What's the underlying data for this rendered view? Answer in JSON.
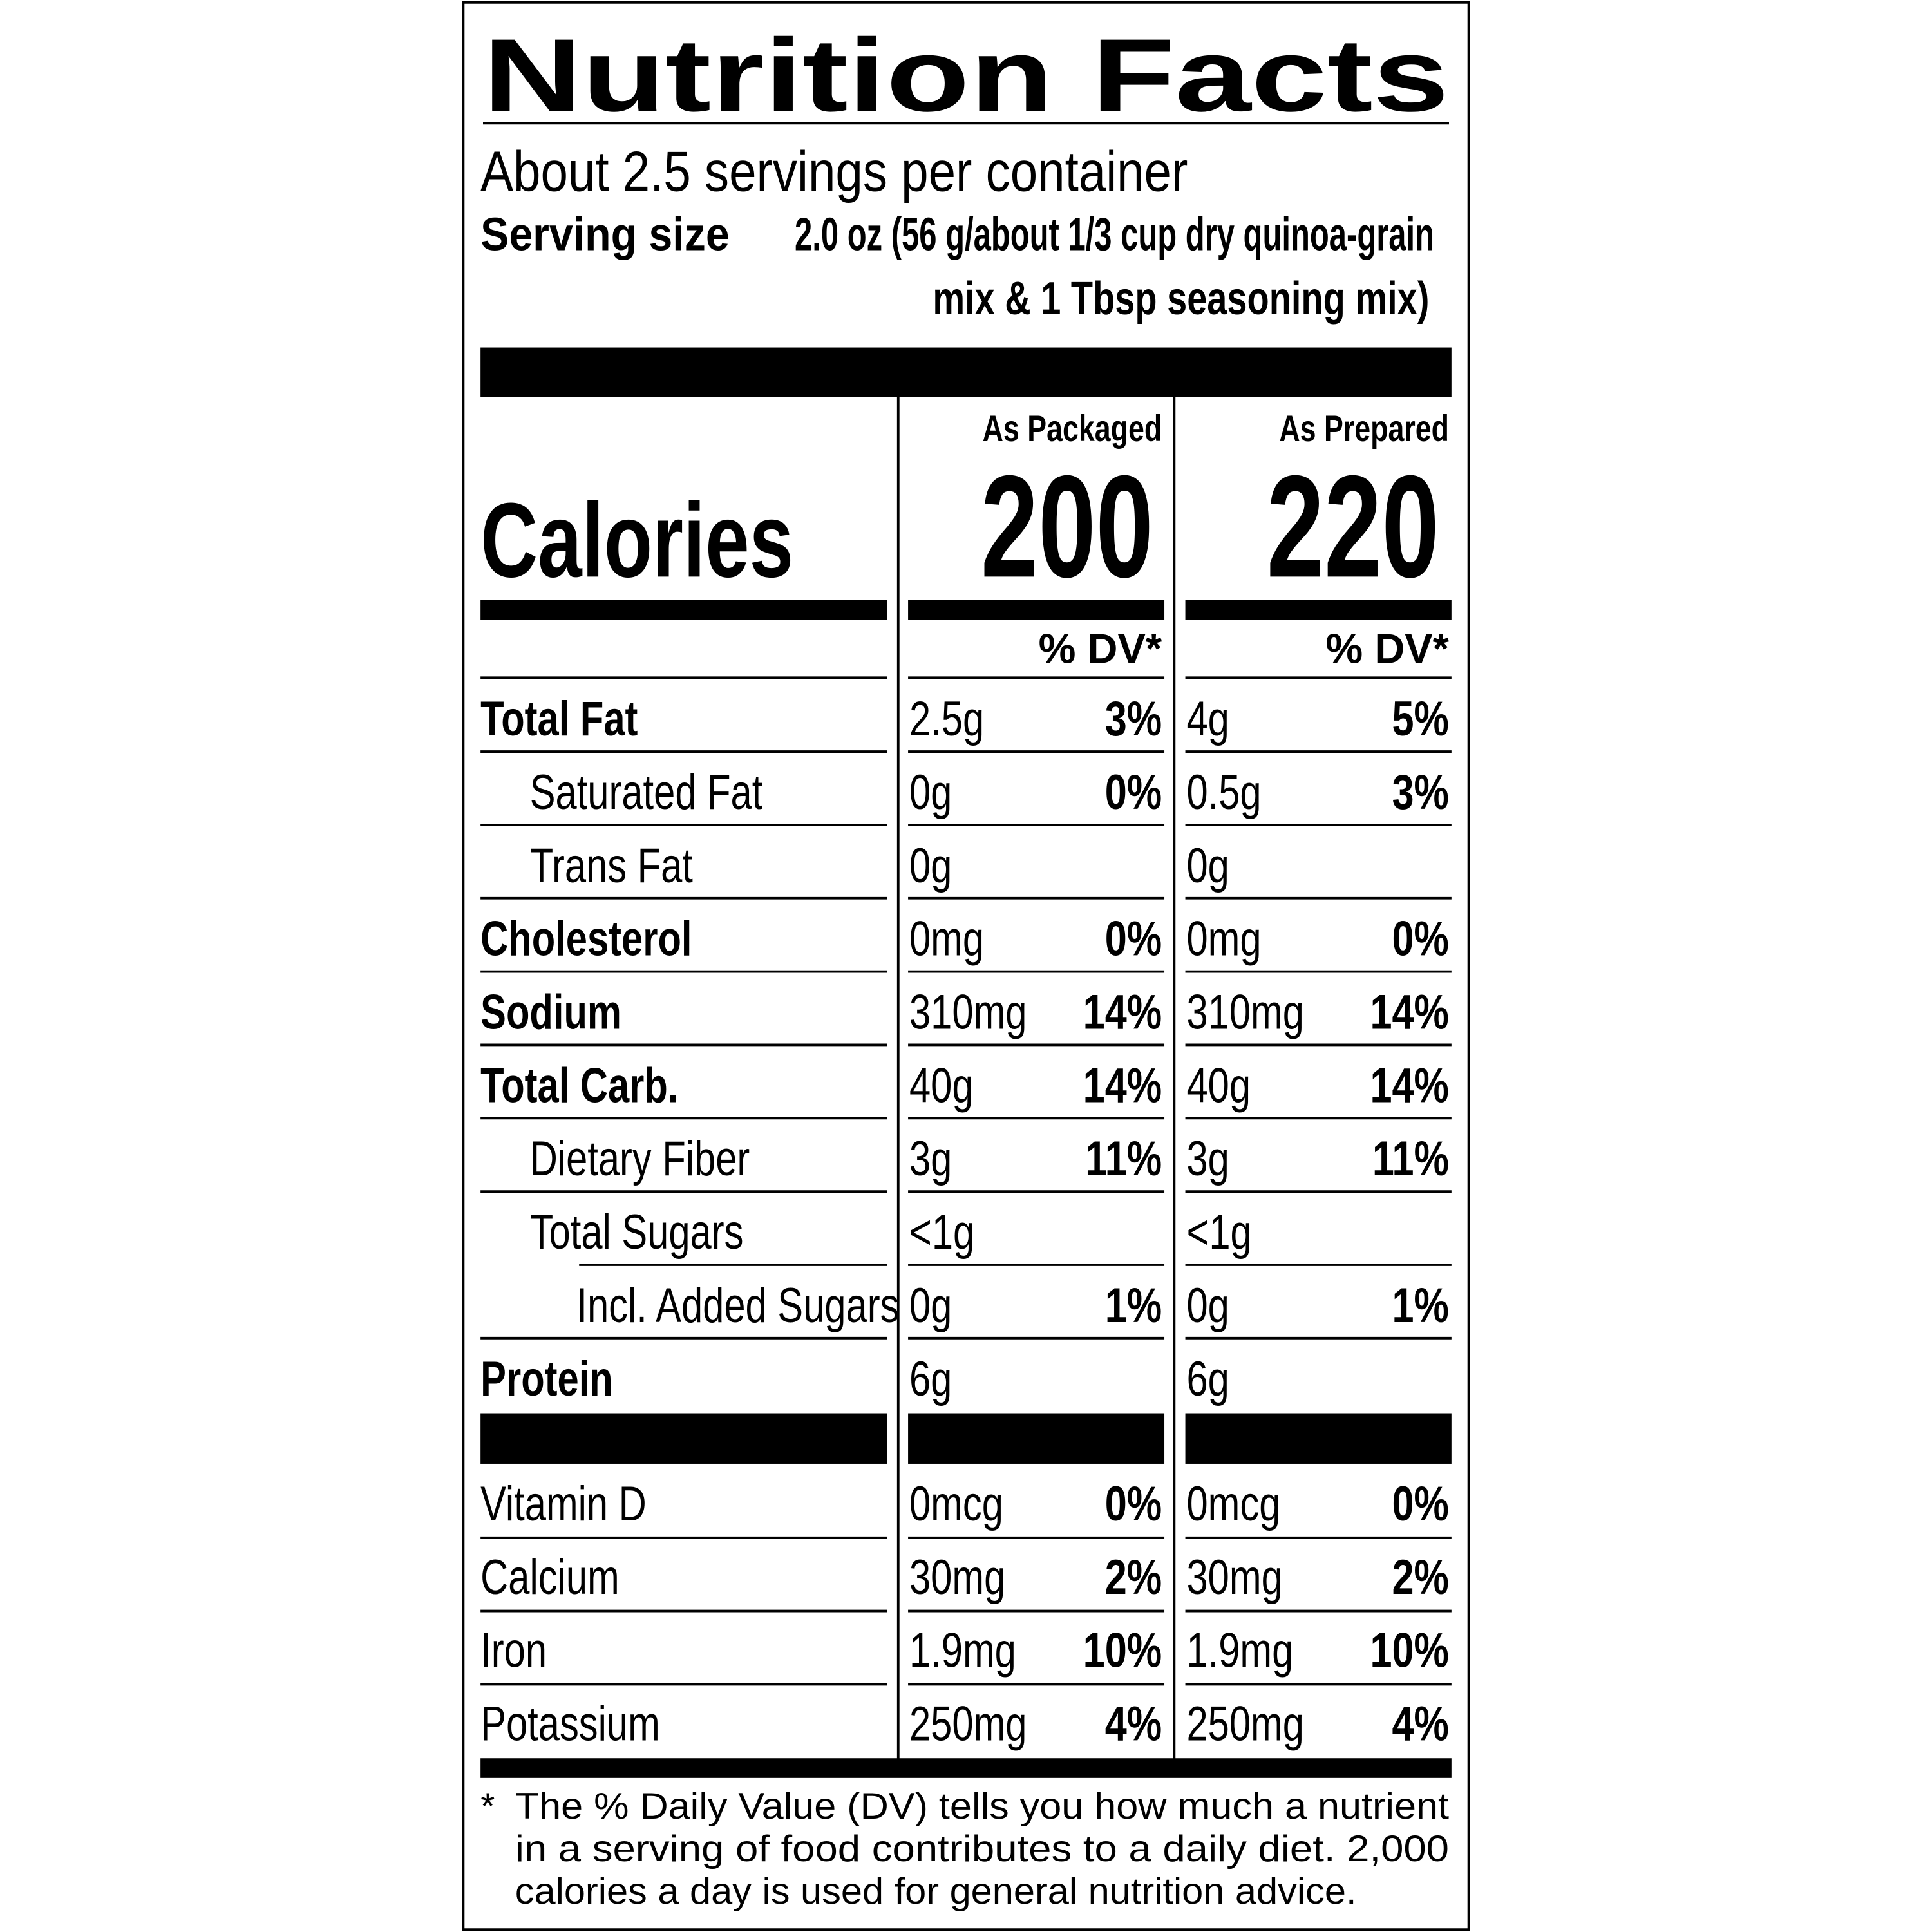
{
  "header": {
    "title": "Nutrition Facts",
    "servings": "About 2.5 servings per container",
    "serving_size_label": "Serving size",
    "serving_size_lines": [
      "2.0 oz (56 g/about 1/3 cup dry quinoa-grain",
      "mix & 1 Tbsp seasoning mix)"
    ]
  },
  "columns": [
    "As Packaged",
    "As Prepared"
  ],
  "calories": {
    "label": "Calories",
    "values": [
      "200",
      "220"
    ]
  },
  "dv_headers": [
    "% DV*",
    "% DV*"
  ],
  "rows": [
    {
      "name": "Total Fat",
      "packaged": [
        "2.5g",
        "3%"
      ],
      "prepared": [
        "4g",
        "5%"
      ]
    },
    {
      "name": "Saturated Fat",
      "packaged": [
        "0g",
        "0%"
      ],
      "prepared": [
        "0.5g",
        "3%"
      ]
    },
    {
      "name": "Trans Fat",
      "packaged": [
        "0g",
        null
      ],
      "prepared": [
        "0g",
        null
      ]
    },
    {
      "name": "Cholesterol",
      "packaged": [
        "0mg",
        "0%"
      ],
      "prepared": [
        "0mg",
        "0%"
      ]
    },
    {
      "name": "Sodium",
      "packaged": [
        "310mg",
        "14%"
      ],
      "prepared": [
        "310mg",
        "14%"
      ]
    },
    {
      "name": "Total Carb.",
      "packaged": [
        "40g",
        "14%"
      ],
      "prepared": [
        "40g",
        "14%"
      ]
    },
    {
      "name": "Dietary Fiber",
      "packaged": [
        "3g",
        "11%"
      ],
      "prepared": [
        "3g",
        "11%"
      ]
    },
    {
      "name": "Total Sugars",
      "packaged": [
        "<1g",
        null
      ],
      "prepared": [
        "<1g",
        null
      ]
    },
    {
      "name": "Incl. Added Sugars",
      "packaged": [
        "0g",
        "1%"
      ],
      "prepared": [
        "0g",
        "1%"
      ]
    },
    {
      "name": "Protein",
      "packaged": [
        "6g",
        null
      ],
      "prepared": [
        "6g",
        null
      ]
    }
  ],
  "vitamins": [
    {
      "name": "Vitamin D",
      "packaged": [
        "0mcg",
        "0%"
      ],
      "prepared": [
        "0mcg",
        "0%"
      ]
    },
    {
      "name": "Calcium",
      "packaged": [
        "30mg",
        "2%"
      ],
      "prepared": [
        "30mg",
        "2%"
      ]
    },
    {
      "name": "Iron",
      "packaged": [
        "1.9mg",
        "10%"
      ],
      "prepared": [
        "1.9mg",
        "10%"
      ]
    },
    {
      "name": "Potassium",
      "packaged": [
        "250mg",
        "4%"
      ],
      "prepared": [
        "250mg",
        "4%"
      ]
    }
  ],
  "footnote": {
    "mark": "*",
    "lines": [
      "The % Daily Value (DV) tells you how much a nutrient",
      "in a serving of food contributes to a daily diet. 2,000",
      "calories a day is used for general nutrition advice."
    ]
  }
}
